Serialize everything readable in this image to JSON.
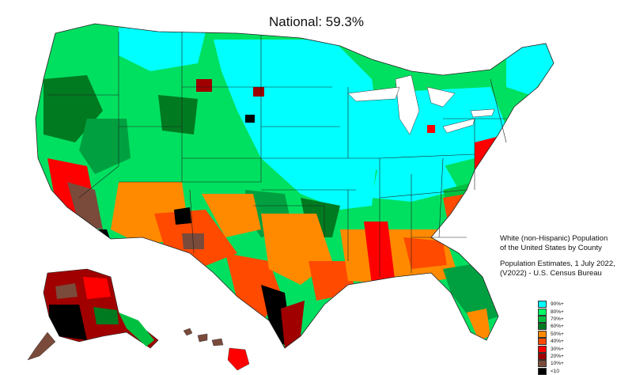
{
  "title": "National: 59.3%",
  "description": {
    "line1": "White (non-Hispanic) Population of the United States by County",
    "line2": "Population Estimates, 1 July 2022, (V2022) - U.S. Census Bureau"
  },
  "legend": [
    {
      "label": "90%+",
      "color": "#00ffff"
    },
    {
      "label": "80%+",
      "color": "#00ff66"
    },
    {
      "label": "70%+",
      "color": "#00c040"
    },
    {
      "label": "60%+",
      "color": "#007a20"
    },
    {
      "label": "50%+",
      "color": "#ff8a00"
    },
    {
      "label": "40%+",
      "color": "#ff4a00"
    },
    {
      "label": "30%+",
      "color": "#ff0000"
    },
    {
      "label": "20%+",
      "color": "#a00000"
    },
    {
      "label": "10%+",
      "color": "#7a4a3a"
    },
    {
      "label": "<10",
      "color": "#000000"
    }
  ]
}
